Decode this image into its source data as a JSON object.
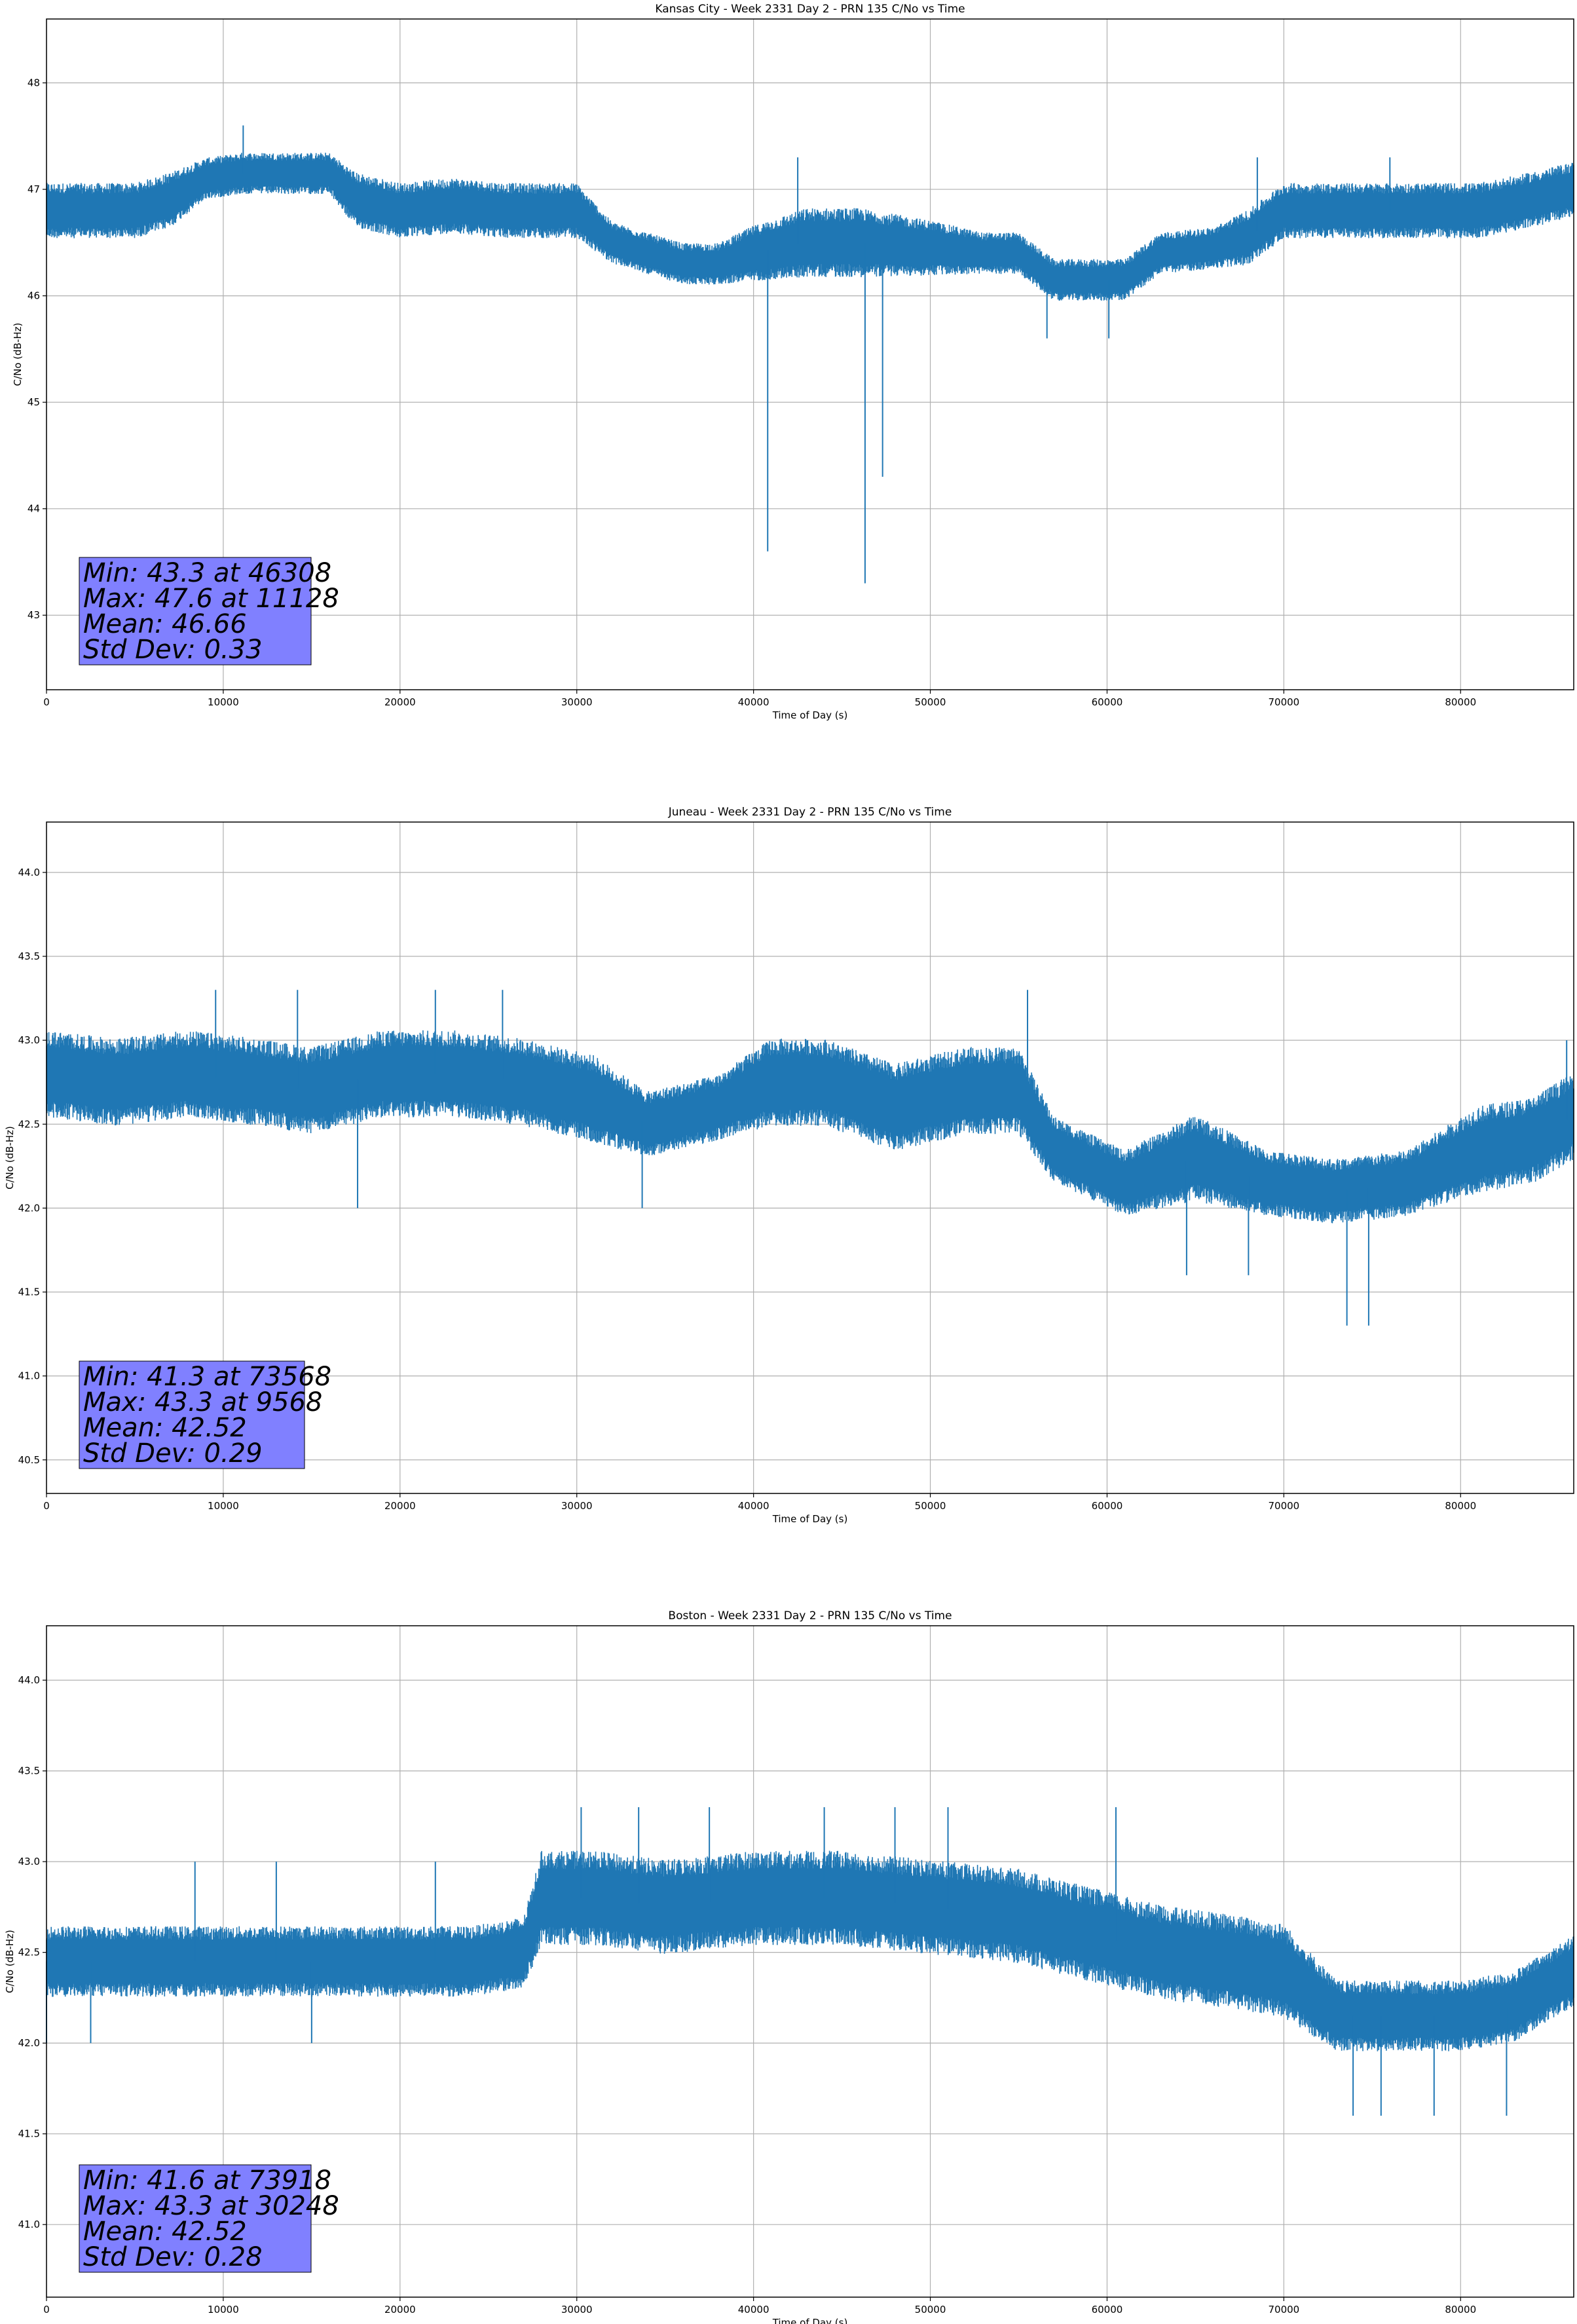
{
  "chart_data": [
    {
      "type": "line",
      "title": "Kansas City - Week 2331 Day 2 - PRN 135 C/No vs Time",
      "xlabel": "Time of Day (s)",
      "ylabel": "C/No (dB-Hz)",
      "xlim": [
        0,
        86400
      ],
      "ylim": [
        42.3,
        48.6
      ],
      "xticks": [
        0,
        10000,
        20000,
        30000,
        40000,
        50000,
        60000,
        70000,
        80000
      ],
      "yticks": [
        43,
        44,
        45,
        46,
        47,
        48
      ],
      "ytick_labels": [
        "43",
        "44",
        "45",
        "46",
        "47",
        "48"
      ],
      "grid": true,
      "color": "#1f77b4",
      "series": [
        {
          "x": [
            0,
            5000,
            7000,
            9000,
            11000,
            16000,
            17500,
            20000,
            23000,
            26000,
            30000,
            32000,
            34000,
            36000,
            38000,
            40000,
            43000,
            46000,
            50000,
            53000,
            55000,
            57000,
            59000,
            61000,
            63000,
            66000,
            68000,
            70000,
            74000,
            78000,
            81000,
            84000,
            86400
          ],
          "y": [
            46.8,
            46.8,
            46.9,
            47.1,
            47.15,
            47.15,
            46.9,
            46.8,
            46.85,
            46.8,
            46.8,
            46.5,
            46.4,
            46.3,
            46.3,
            46.4,
            46.5,
            46.5,
            46.45,
            46.4,
            46.4,
            46.15,
            46.15,
            46.15,
            46.4,
            46.45,
            46.55,
            46.8,
            46.8,
            46.8,
            46.8,
            46.9,
            47.0
          ],
          "band": [
            0.2,
            0.2,
            0.2,
            0.15,
            0.15,
            0.15,
            0.2,
            0.2,
            0.2,
            0.2,
            0.2,
            0.15,
            0.15,
            0.15,
            0.15,
            0.2,
            0.25,
            0.25,
            0.2,
            0.15,
            0.15,
            0.15,
            0.15,
            0.15,
            0.15,
            0.15,
            0.2,
            0.2,
            0.2,
            0.2,
            0.2,
            0.2,
            0.2
          ]
        }
      ],
      "spikes": [
        [
          40800,
          43.6
        ],
        [
          46308,
          43.3
        ],
        [
          47300,
          44.3
        ],
        [
          56600,
          45.6
        ],
        [
          60100,
          45.6
        ],
        [
          11128,
          47.6
        ],
        [
          42500,
          47.3
        ],
        [
          68500,
          47.3
        ],
        [
          76000,
          47.3
        ]
      ],
      "stats": [
        "Min: 43.3 at 46308",
        "Max: 47.6 at 11128",
        "Mean: 46.66",
        "Std Dev: 0.33"
      ]
    },
    {
      "type": "line",
      "title": "Juneau - Week 2331 Day 2 - PRN 135 C/No vs Time",
      "xlabel": "Time of Day (s)",
      "ylabel": "C/No (dB-Hz)",
      "xlim": [
        0,
        86400
      ],
      "ylim": [
        40.3,
        44.3
      ],
      "xticks": [
        0,
        10000,
        20000,
        30000,
        40000,
        50000,
        60000,
        70000,
        80000
      ],
      "yticks": [
        40.5,
        41.0,
        41.5,
        42.0,
        42.5,
        43.0,
        43.5,
        44.0
      ],
      "ytick_labels": [
        "40.5",
        "41.0",
        "41.5",
        "42.0",
        "42.5",
        "43.0",
        "43.5",
        "44.0"
      ],
      "grid": true,
      "color": "#1f77b4",
      "series": [
        {
          "x": [
            0,
            4000,
            8000,
            12000,
            15000,
            19000,
            23000,
            27000,
            31000,
            34000,
            38000,
            41000,
            44000,
            48000,
            52000,
            55000,
            57000,
            61000,
            65000,
            69000,
            73000,
            77000,
            81000,
            84000,
            86400
          ],
          "y": [
            42.8,
            42.75,
            42.8,
            42.75,
            42.7,
            42.8,
            42.8,
            42.75,
            42.65,
            42.5,
            42.6,
            42.75,
            42.75,
            42.6,
            42.7,
            42.7,
            42.35,
            42.15,
            42.3,
            42.15,
            42.1,
            42.15,
            42.35,
            42.4,
            42.55
          ],
          "band": [
            0.2,
            0.2,
            0.2,
            0.2,
            0.2,
            0.2,
            0.2,
            0.2,
            0.2,
            0.15,
            0.15,
            0.2,
            0.2,
            0.2,
            0.2,
            0.2,
            0.15,
            0.15,
            0.2,
            0.15,
            0.15,
            0.15,
            0.2,
            0.2,
            0.2
          ]
        }
      ],
      "spikes": [
        [
          73568,
          41.3
        ],
        [
          74800,
          41.3
        ],
        [
          64500,
          41.6
        ],
        [
          68000,
          41.6
        ],
        [
          17600,
          42.0
        ],
        [
          33700,
          42.0
        ],
        [
          9568,
          43.3
        ],
        [
          14200,
          43.3
        ],
        [
          22000,
          43.3
        ],
        [
          25800,
          43.3
        ],
        [
          55500,
          43.3
        ],
        [
          86000,
          43.0
        ]
      ],
      "stats": [
        "Min: 41.3 at 73568",
        "Max: 43.3 at 9568",
        "Mean: 42.52",
        "Std Dev: 0.29"
      ]
    },
    {
      "type": "line",
      "title": "Boston - Week 2331 Day 2 - PRN 135 C/No vs Time",
      "xlabel": "Time of Day (s)",
      "ylabel": "C/No (dB-Hz)",
      "xlim": [
        0,
        86400
      ],
      "ylim": [
        40.6,
        44.3
      ],
      "xticks": [
        0,
        10000,
        20000,
        30000,
        40000,
        50000,
        60000,
        70000,
        80000
      ],
      "yticks": [
        41.0,
        41.5,
        42.0,
        42.5,
        43.0,
        43.5,
        44.0
      ],
      "ytick_labels": [
        "41.0",
        "41.5",
        "42.0",
        "42.5",
        "43.0",
        "43.5",
        "44.0"
      ],
      "grid": true,
      "color": "#1f77b4",
      "series": [
        {
          "x": [
            0,
            4000,
            8000,
            12000,
            16000,
            20000,
            24000,
            27000,
            28000,
            31000,
            35000,
            40000,
            45000,
            50000,
            55000,
            59000,
            63000,
            67000,
            70000,
            73000,
            76000,
            80000,
            83000,
            86400
          ],
          "y": [
            42.45,
            42.45,
            42.45,
            42.45,
            42.45,
            42.45,
            42.45,
            42.5,
            42.8,
            42.8,
            42.75,
            42.8,
            42.8,
            42.75,
            42.7,
            42.6,
            42.5,
            42.45,
            42.4,
            42.15,
            42.15,
            42.15,
            42.2,
            42.4
          ],
          "band": [
            0.15,
            0.15,
            0.15,
            0.15,
            0.15,
            0.15,
            0.15,
            0.15,
            0.2,
            0.2,
            0.2,
            0.2,
            0.2,
            0.2,
            0.2,
            0.2,
            0.2,
            0.2,
            0.2,
            0.15,
            0.15,
            0.15,
            0.15,
            0.15
          ]
        }
      ],
      "spikes": [
        [
          73918,
          41.6
        ],
        [
          75500,
          41.6
        ],
        [
          78500,
          41.6
        ],
        [
          82600,
          41.6
        ],
        [
          0,
          42.0
        ],
        [
          2500,
          42.0
        ],
        [
          15000,
          42.0
        ],
        [
          30248,
          43.3
        ],
        [
          33500,
          43.3
        ],
        [
          37500,
          43.3
        ],
        [
          44000,
          43.3
        ],
        [
          48000,
          43.3
        ],
        [
          51000,
          43.3
        ],
        [
          60500,
          43.3
        ],
        [
          8400,
          43.0
        ],
        [
          13000,
          43.0
        ],
        [
          22000,
          43.0
        ]
      ],
      "stats": [
        "Min: 41.6 at 73918",
        "Max: 43.3 at 30248",
        "Mean: 42.52",
        "Std Dev: 0.28"
      ]
    }
  ]
}
